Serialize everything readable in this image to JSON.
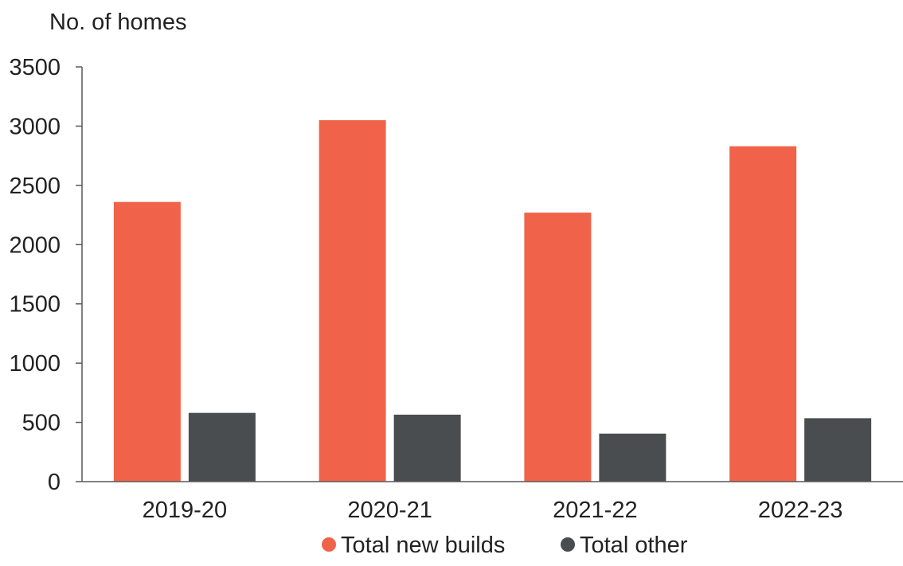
{
  "chart_data": {
    "type": "bar",
    "ylabel": "No. of homes",
    "categories": [
      "2019-20",
      "2020-21",
      "2021-22",
      "2022-23"
    ],
    "ylim": [
      0,
      3500
    ],
    "yticks": [
      0,
      500,
      1000,
      1500,
      2000,
      2500,
      3000,
      3500
    ],
    "grid": false,
    "legend_position": "bottom",
    "series": [
      {
        "name": "Total new builds",
        "color": "#f0634a",
        "values": [
          2360,
          3050,
          2270,
          2830
        ]
      },
      {
        "name": "Total other",
        "color": "#4a4d50",
        "values": [
          580,
          565,
          405,
          535
        ]
      }
    ]
  }
}
